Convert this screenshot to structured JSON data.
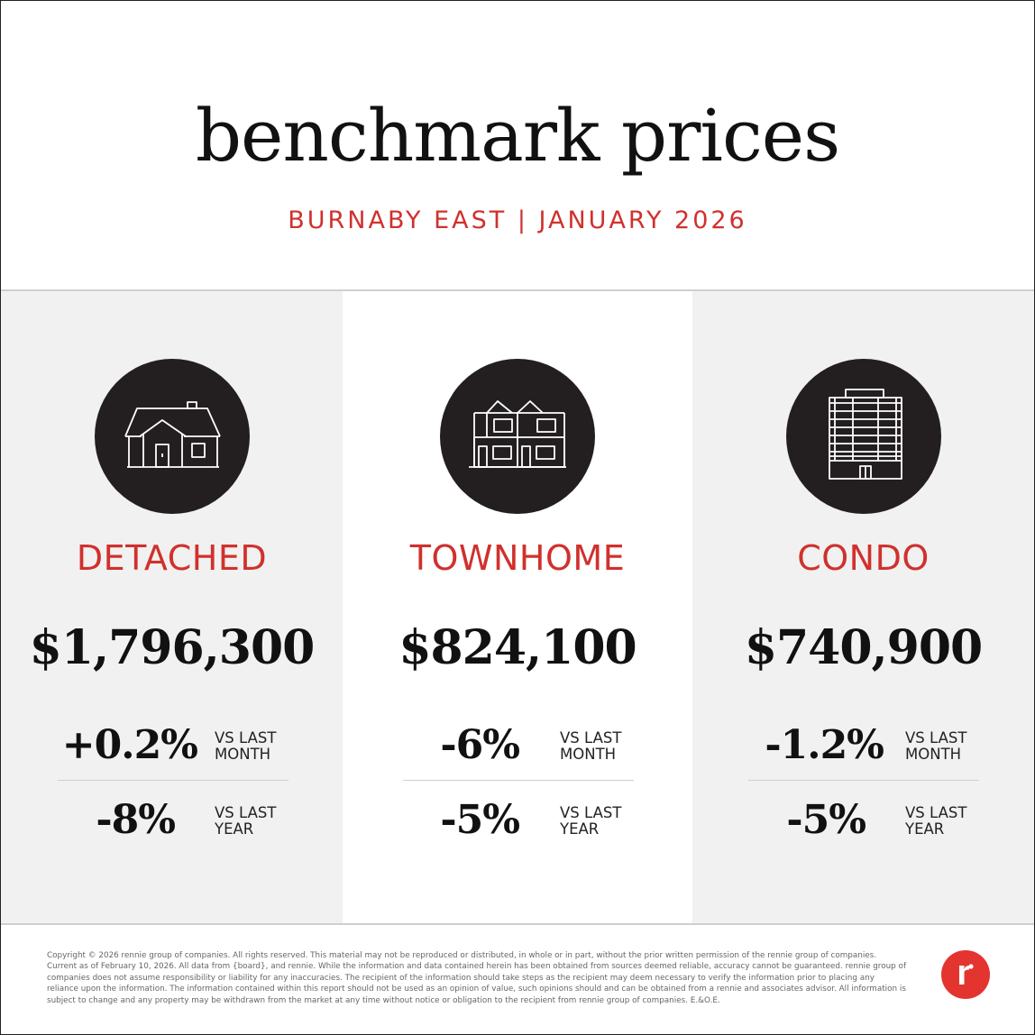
{
  "header": {
    "title": "benchmark prices",
    "subtitle": "BURNABY EAST | JANUARY 2026"
  },
  "properties": [
    {
      "type": "DETACHED",
      "icon": "detached-house-icon",
      "price": "$1,796,300",
      "month_change": "+0.2%",
      "month_label_1": "VS LAST",
      "month_label_2": "MONTH",
      "year_change": "-8%",
      "year_label_1": "VS LAST",
      "year_label_2": "YEAR"
    },
    {
      "type": "TOWNHOME",
      "icon": "townhome-icon",
      "price": "$824,100",
      "month_change": "-6%",
      "month_label_1": "VS LAST",
      "month_label_2": "MONTH",
      "year_change": "-5%",
      "year_label_1": "VS LAST",
      "year_label_2": "YEAR"
    },
    {
      "type": "CONDO",
      "icon": "condo-building-icon",
      "price": "$740,900",
      "month_change": "-1.2%",
      "month_label_1": "VS LAST",
      "month_label_2": "MONTH",
      "year_change": "-5%",
      "year_label_1": "VS LAST",
      "year_label_2": "YEAR"
    }
  ],
  "footer": {
    "disclaimer": "Copyright © 2026 rennie group of companies. All rights reserved. This material may not be reproduced or distributed, in whole or in part, without the prior written permission of the rennie group of companies. Current as of February 10, 2026. All data from {board}, and rennie. While the information and data contained herein has been obtained from sources deemed reliable, accuracy cannot be guaranteed. rennie group of companies does not assume responsibility or liability for any inaccuracies. The recipient of the information should take steps as the recipient may deem necessary to verify the information prior to placing any reliance upon the information. The information contained within this report should not be used as an opinion of value, such opinions should and can be obtained from a rennie and associates advisor. All information is subject to change and any property may be withdrawn from the market at any time without notice or obligation to the recipient from rennie group of companies. E.&O.E.",
    "logo": "rennie-logo-icon"
  },
  "colors": {
    "accent_red": "#d0312d",
    "icon_circle": "#231f20",
    "panel_gray": "#f1f1f1"
  }
}
